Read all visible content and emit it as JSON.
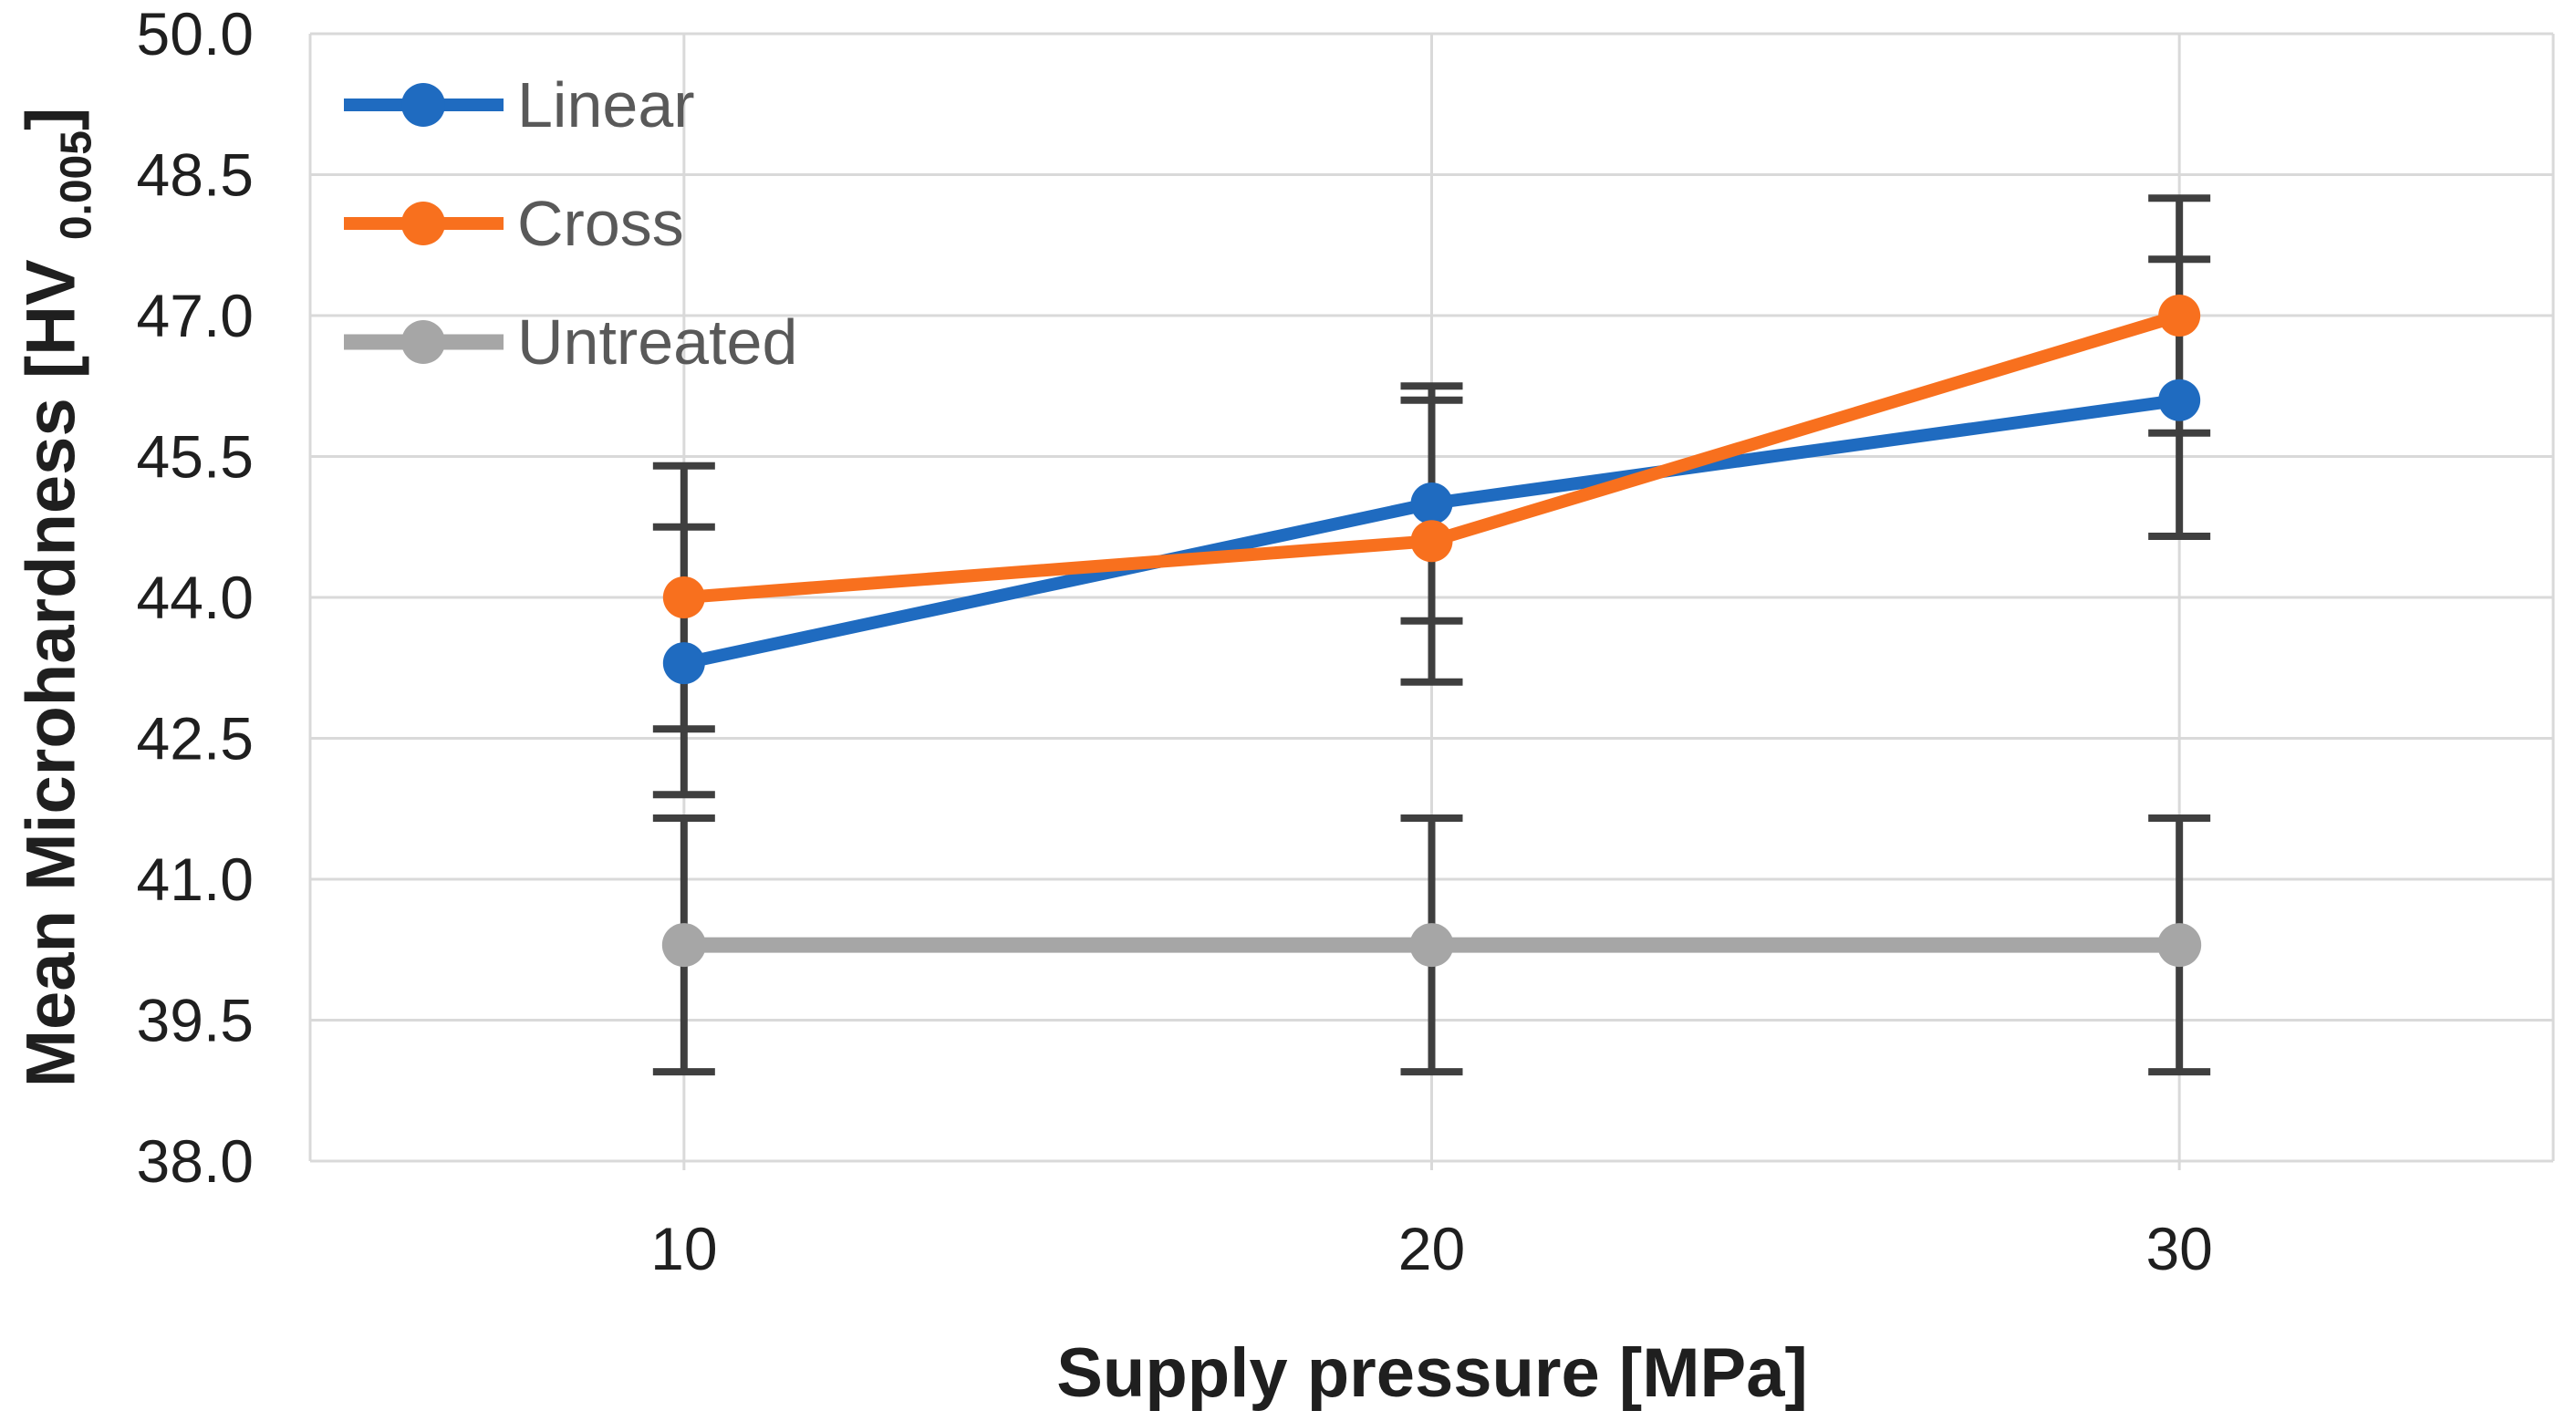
{
  "chart_data": {
    "type": "line",
    "title": "",
    "xlabel": "Supply pressure [MPa]",
    "ylabel": "Mean Microhardness [HV 0.005]",
    "ylabel_main": "Mean Microhardness [HV ",
    "ylabel_sub": "0.005",
    "ylabel_close": "]",
    "categories": [
      10,
      20,
      30
    ],
    "x_tick_labels": [
      "10",
      "20",
      "30"
    ],
    "y_ticks": [
      38.0,
      39.5,
      41.0,
      42.5,
      44.0,
      45.5,
      47.0,
      48.5,
      50.0
    ],
    "y_tick_labels": [
      "38.0",
      "39.5",
      "41.0",
      "42.5",
      "44.0",
      "45.5",
      "47.0",
      "48.5",
      "50.0"
    ],
    "ylim": [
      38.0,
      50.0
    ],
    "grid": true,
    "legend_position": "top-left-inside",
    "series": [
      {
        "name": "Linear",
        "color": "#1F6BC0",
        "values": [
          43.3,
          45.0,
          46.1
        ],
        "error_low": [
          41.9,
          43.75,
          44.65
        ],
        "error_high": [
          44.75,
          46.25,
          47.6
        ]
      },
      {
        "name": "Cross",
        "color": "#F8701E",
        "values": [
          44.0,
          44.6,
          47.0
        ],
        "error_low": [
          42.6,
          43.1,
          45.75
        ],
        "error_high": [
          45.4,
          46.1,
          48.25
        ]
      },
      {
        "name": "Untreated",
        "color": "#A6A6A6",
        "values": [
          40.3,
          40.3,
          40.3
        ],
        "error_low": [
          38.95,
          38.95,
          38.95
        ],
        "error_high": [
          41.65,
          41.65,
          41.65
        ]
      }
    ],
    "styles": {
      "error_bar_color": "#3F3F3F",
      "gridline_color": "#D9D9D9",
      "tick_text_color": "#1F1F1F",
      "legend_text_color": "#595959"
    }
  }
}
